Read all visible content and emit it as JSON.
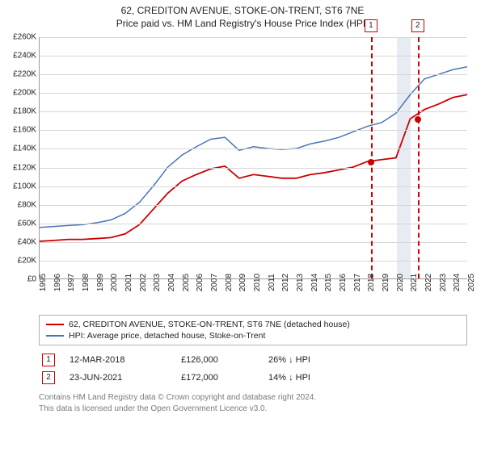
{
  "title": "62, CREDITON AVENUE, STOKE-ON-TRENT, ST6 7NE",
  "subtitle": "Price paid vs. HM Land Registry's House Price Index (HPI)",
  "chart": {
    "type": "line",
    "background_color": "#ffffff",
    "grid_color": "#d6d6d6",
    "axis_color": "#9a9a9a",
    "font_size_labels": 10,
    "y": {
      "min": 0,
      "max": 260000,
      "tick_step": 20000,
      "tick_labels": [
        "£0",
        "£20K",
        "£40K",
        "£60K",
        "£80K",
        "£100K",
        "£120K",
        "£140K",
        "£160K",
        "£180K",
        "£200K",
        "£220K",
        "£240K",
        "£260K"
      ]
    },
    "x": {
      "min": 1995,
      "max": 2025,
      "tick_labels": [
        "1995",
        "1996",
        "1997",
        "1998",
        "1999",
        "2000",
        "2001",
        "2002",
        "2003",
        "2004",
        "2005",
        "2006",
        "2007",
        "2008",
        "2009",
        "2010",
        "2011",
        "2012",
        "2013",
        "2014",
        "2015",
        "2016",
        "2017",
        "2018",
        "2019",
        "2020",
        "2021",
        "2022",
        "2023",
        "2024",
        "2025"
      ]
    },
    "series": [
      {
        "name": "price_paid",
        "label": "62, CREDITON AVENUE, STOKE-ON-TRENT, ST6 7NE (detached house)",
        "color": "#cc0000",
        "line_width": 1.8,
        "data": [
          [
            1995,
            40000
          ],
          [
            1996,
            41000
          ],
          [
            1997,
            42000
          ],
          [
            1998,
            42000
          ],
          [
            1999,
            43000
          ],
          [
            2000,
            44000
          ],
          [
            2001,
            48000
          ],
          [
            2002,
            58000
          ],
          [
            2003,
            75000
          ],
          [
            2004,
            92000
          ],
          [
            2005,
            105000
          ],
          [
            2006,
            112000
          ],
          [
            2007,
            118000
          ],
          [
            2008,
            121000
          ],
          [
            2009,
            108000
          ],
          [
            2010,
            112000
          ],
          [
            2011,
            110000
          ],
          [
            2012,
            108000
          ],
          [
            2013,
            108000
          ],
          [
            2014,
            112000
          ],
          [
            2015,
            114000
          ],
          [
            2016,
            117000
          ],
          [
            2017,
            120000
          ],
          [
            2018,
            126000
          ],
          [
            2019,
            128000
          ],
          [
            2020,
            130000
          ],
          [
            2021,
            172000
          ],
          [
            2022,
            182000
          ],
          [
            2023,
            188000
          ],
          [
            2024,
            195000
          ],
          [
            2025,
            198000
          ]
        ]
      },
      {
        "name": "hpi",
        "label": "HPI: Average price, detached house, Stoke-on-Trent",
        "color": "#4a74b8",
        "line_width": 1.5,
        "data": [
          [
            1995,
            55000
          ],
          [
            1996,
            56000
          ],
          [
            1997,
            57000
          ],
          [
            1998,
            58000
          ],
          [
            1999,
            60000
          ],
          [
            2000,
            63000
          ],
          [
            2001,
            70000
          ],
          [
            2002,
            82000
          ],
          [
            2003,
            100000
          ],
          [
            2004,
            120000
          ],
          [
            2005,
            133000
          ],
          [
            2006,
            142000
          ],
          [
            2007,
            150000
          ],
          [
            2008,
            152000
          ],
          [
            2009,
            138000
          ],
          [
            2010,
            142000
          ],
          [
            2011,
            140000
          ],
          [
            2012,
            139000
          ],
          [
            2013,
            140000
          ],
          [
            2014,
            145000
          ],
          [
            2015,
            148000
          ],
          [
            2016,
            152000
          ],
          [
            2017,
            158000
          ],
          [
            2018,
            164000
          ],
          [
            2019,
            168000
          ],
          [
            2020,
            178000
          ],
          [
            2021,
            198000
          ],
          [
            2022,
            215000
          ],
          [
            2023,
            220000
          ],
          [
            2024,
            225000
          ],
          [
            2025,
            228000
          ]
        ]
      }
    ],
    "highlight_band": {
      "start": 2020,
      "end": 2021,
      "color": "#dde4f0"
    },
    "markers": [
      {
        "id": "1",
        "year": 2018.2,
        "value": 126000
      },
      {
        "id": "2",
        "year": 2021.48,
        "value": 172000
      }
    ]
  },
  "sales": [
    {
      "id": "1",
      "date": "12-MAR-2018",
      "price": "£126,000",
      "delta": "26% ↓ HPI"
    },
    {
      "id": "2",
      "date": "23-JUN-2021",
      "price": "£172,000",
      "delta": "14% ↓ HPI"
    }
  ],
  "footer": {
    "line1": "Contains HM Land Registry data © Crown copyright and database right 2024.",
    "line2": "This data is licensed under the Open Government Licence v3.0."
  }
}
